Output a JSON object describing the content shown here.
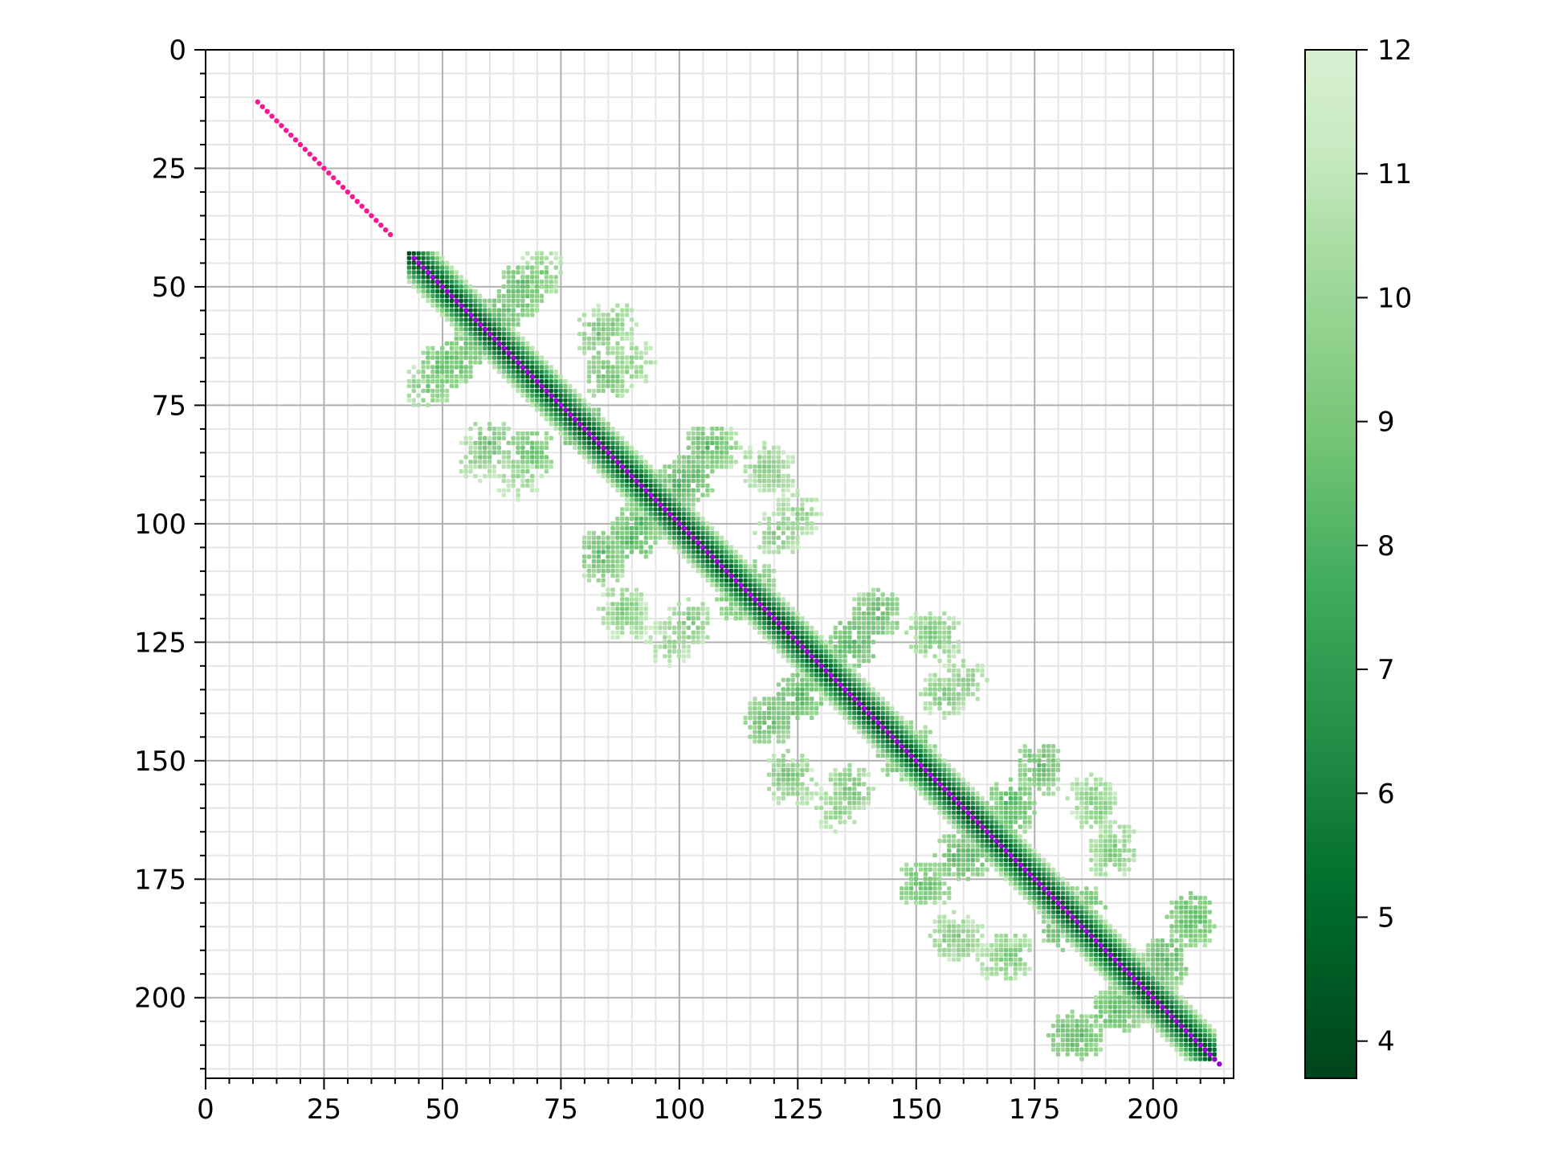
{
  "chart_data": {
    "type": "heatmap",
    "title": "",
    "xlabel": "",
    "ylabel": "",
    "xlim": [
      0,
      217
    ],
    "ylim": [
      217,
      0
    ],
    "y_inverted": true,
    "grid": true,
    "minor_grid": true,
    "x_ticks": [
      0,
      25,
      50,
      75,
      100,
      125,
      150,
      175,
      200
    ],
    "y_ticks": [
      0,
      25,
      50,
      75,
      100,
      125,
      150,
      175,
      200
    ],
    "colorbar": {
      "colormap": "Greens_r",
      "min": 3.7,
      "max": 12.0,
      "ticks": [
        4,
        5,
        6,
        7,
        8,
        9,
        10,
        11,
        12
      ],
      "color_low": "#00441b",
      "color_high": "#d9f0d3"
    },
    "matrix_region": {
      "start": 43,
      "end": 213
    },
    "diagonal_band": {
      "half_width": 6,
      "center_value": 3.9,
      "edge_value": 10.8
    },
    "contact_clusters": [
      {
        "x": 67,
        "y": 50,
        "intensity": 7.8
      },
      {
        "x": 62,
        "y": 56,
        "intensity": 7.6
      },
      {
        "x": 52,
        "y": 66,
        "intensity": 7.8
      },
      {
        "x": 47,
        "y": 71,
        "intensity": 8.6
      },
      {
        "x": 86,
        "y": 58,
        "intensity": 8.8
      },
      {
        "x": 90,
        "y": 66,
        "intensity": 9.0
      },
      {
        "x": 60,
        "y": 83,
        "intensity": 8.2
      },
      {
        "x": 69,
        "y": 85,
        "intensity": 8.0
      },
      {
        "x": 79,
        "y": 80,
        "intensity": 7.6
      },
      {
        "x": 106,
        "y": 84,
        "intensity": 7.8
      },
      {
        "x": 100,
        "y": 92,
        "intensity": 7.6
      },
      {
        "x": 90,
        "y": 103,
        "intensity": 7.6
      },
      {
        "x": 84,
        "y": 108,
        "intensity": 8.4
      },
      {
        "x": 120,
        "y": 89,
        "intensity": 9.0
      },
      {
        "x": 125,
        "y": 98,
        "intensity": 9.0
      },
      {
        "x": 88,
        "y": 118,
        "intensity": 8.6
      },
      {
        "x": 102,
        "y": 121,
        "intensity": 8.6
      },
      {
        "x": 113,
        "y": 116,
        "intensity": 8.0
      },
      {
        "x": 142,
        "y": 119,
        "intensity": 7.8
      },
      {
        "x": 137,
        "y": 125,
        "intensity": 7.6
      },
      {
        "x": 126,
        "y": 136,
        "intensity": 7.6
      },
      {
        "x": 119,
        "y": 141,
        "intensity": 8.2
      },
      {
        "x": 155,
        "y": 124,
        "intensity": 8.8
      },
      {
        "x": 160,
        "y": 133,
        "intensity": 8.8
      },
      {
        "x": 123,
        "y": 153,
        "intensity": 8.4
      },
      {
        "x": 136,
        "y": 156,
        "intensity": 8.4
      },
      {
        "x": 147,
        "y": 149,
        "intensity": 7.8
      },
      {
        "x": 176,
        "y": 151,
        "intensity": 7.8
      },
      {
        "x": 170,
        "y": 159,
        "intensity": 7.6
      },
      {
        "x": 161,
        "y": 170,
        "intensity": 7.6
      },
      {
        "x": 153,
        "y": 176,
        "intensity": 8.2
      },
      {
        "x": 188,
        "y": 160,
        "intensity": 8.8
      },
      {
        "x": 192,
        "y": 168,
        "intensity": 8.8
      },
      {
        "x": 158,
        "y": 187,
        "intensity": 8.6
      },
      {
        "x": 170,
        "y": 191,
        "intensity": 8.4
      },
      {
        "x": 181,
        "y": 185,
        "intensity": 7.8
      },
      {
        "x": 208,
        "y": 183,
        "intensity": 7.6
      },
      {
        "x": 203,
        "y": 192,
        "intensity": 7.6
      },
      {
        "x": 194,
        "y": 202,
        "intensity": 7.8
      },
      {
        "x": 185,
        "y": 208,
        "intensity": 8.0
      }
    ],
    "series": [
      {
        "type": "diagonal_points",
        "color": "#ff1493",
        "x_range": [
          11,
          39
        ],
        "points": [
          [
            11,
            11
          ],
          [
            12,
            12
          ],
          [
            13,
            13
          ],
          [
            14,
            14
          ],
          [
            15,
            15
          ],
          [
            16,
            16
          ],
          [
            17,
            17
          ],
          [
            18,
            18
          ],
          [
            19,
            19
          ],
          [
            20,
            20
          ],
          [
            21,
            21
          ],
          [
            22,
            22
          ],
          [
            23,
            23
          ],
          [
            24,
            24
          ],
          [
            25,
            25
          ],
          [
            26,
            26
          ],
          [
            27,
            27
          ],
          [
            28,
            28
          ],
          [
            29,
            29
          ],
          [
            30,
            30
          ],
          [
            31,
            31
          ],
          [
            32,
            32
          ],
          [
            33,
            33
          ],
          [
            34,
            34
          ],
          [
            35,
            35
          ],
          [
            36,
            36
          ],
          [
            37,
            37
          ],
          [
            38,
            38
          ],
          [
            39,
            39
          ]
        ]
      },
      {
        "type": "diagonal_points",
        "color": "#9400d3",
        "x_range": [
          44,
          214
        ],
        "step": 1
      }
    ]
  }
}
